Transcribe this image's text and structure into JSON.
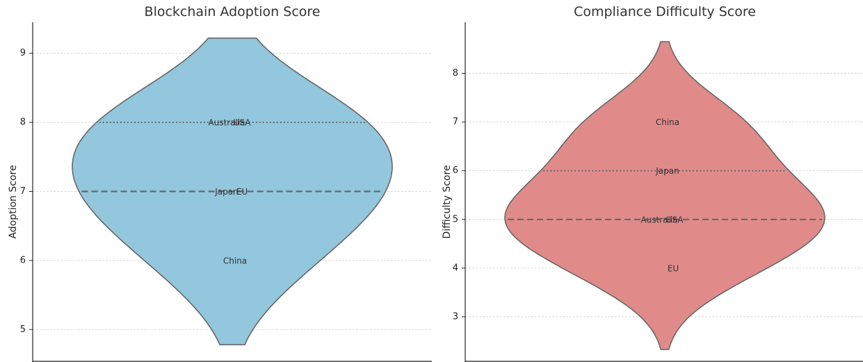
{
  "chart_data": [
    {
      "type": "violin",
      "title": "Blockchain Adoption Score",
      "xlabel": "",
      "ylabel": "Adoption Score",
      "ylim": [
        4.55,
        9.45
      ],
      "yticks": [
        5,
        6,
        7,
        8,
        9
      ],
      "grid": "horizontal",
      "color": "#92c7de",
      "edge_color": "#666666",
      "range": [
        4.78,
        9.22
      ],
      "median": 7.0,
      "quartile_upper": 8.0,
      "points": [
        {
          "country": "USA",
          "value": 8.0
        },
        {
          "country": "Australia",
          "value": 8.0
        },
        {
          "country": "EU",
          "value": 7.0
        },
        {
          "country": "Japan",
          "value": 7.0
        },
        {
          "country": "China",
          "value": 6.0
        }
      ]
    },
    {
      "type": "violin",
      "title": "Compliance Difficulty Score",
      "xlabel": "",
      "ylabel": "Difficulty Score",
      "ylim": [
        2.1,
        9.05
      ],
      "yticks": [
        3,
        4,
        5,
        6,
        7,
        8
      ],
      "grid": "horizontal",
      "color": "#e08b8a",
      "edge_color": "#666666",
      "range": [
        2.33,
        8.65
      ],
      "median": 5.0,
      "quartile_upper": 6.0,
      "points": [
        {
          "country": "China",
          "value": 7.0
        },
        {
          "country": "Japan",
          "value": 6.0
        },
        {
          "country": "USA",
          "value": 5.0
        },
        {
          "country": "Australia",
          "value": 5.0
        },
        {
          "country": "EU",
          "value": 4.0
        }
      ]
    }
  ]
}
